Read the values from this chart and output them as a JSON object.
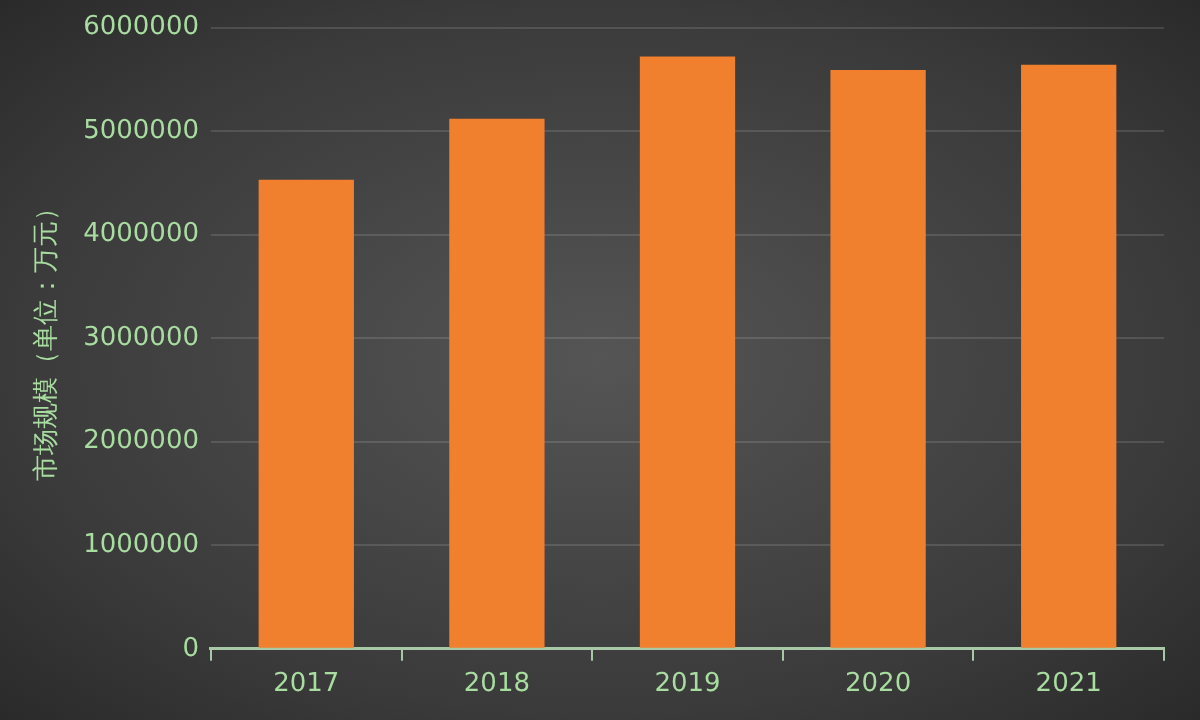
{
  "chart_data": {
    "type": "bar",
    "ylabel": "市场规模（单位：万元）",
    "categories": [
      "2017",
      "2018",
      "2019",
      "2020",
      "2021"
    ],
    "values": [
      4530000,
      5120000,
      5720000,
      5590000,
      5640000
    ],
    "color": "#f07f2e",
    "ylim": [
      0,
      6000000
    ],
    "yticks": [
      0,
      1000000,
      2000000,
      3000000,
      4000000,
      5000000,
      6000000
    ],
    "grid": "y",
    "legend": false
  }
}
